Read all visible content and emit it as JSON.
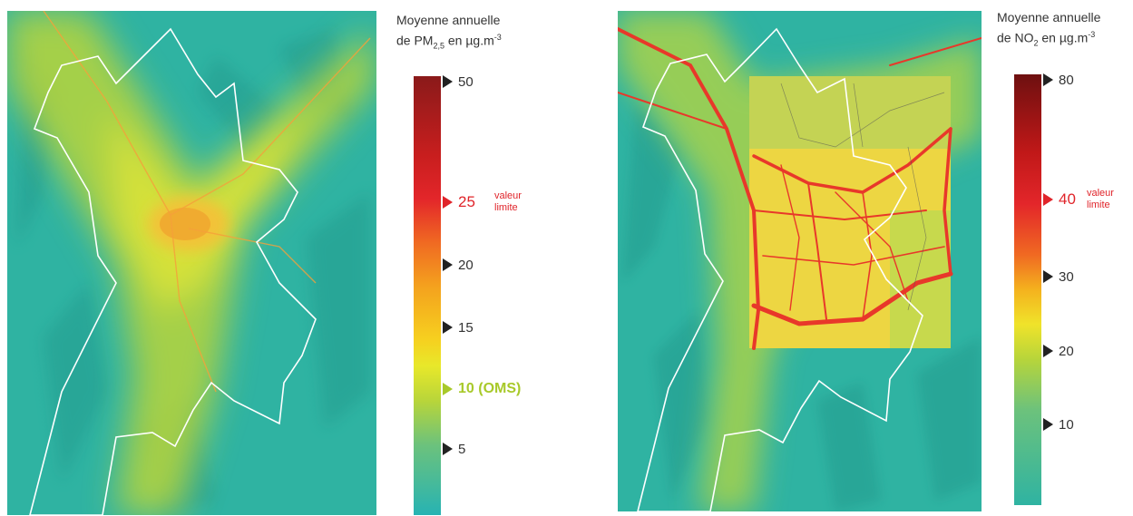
{
  "pm25_map": {
    "legend": {
      "title_line1": "Moyenne annuelle",
      "title_line2_prefix": "de PM",
      "title_line2_sub": "2,5",
      "title_line2_suffix": " en µg.m",
      "title_line2_sup": "-3",
      "limit_note": "valeur\nlimite",
      "ticks": [
        {
          "label": "50",
          "value": 50
        },
        {
          "label": "25",
          "value": 25,
          "highlight": "limit"
        },
        {
          "label": "20",
          "value": 20
        },
        {
          "label": "15",
          "value": 15
        },
        {
          "label": "10 (OMS)",
          "value": 10,
          "highlight": "who"
        },
        {
          "label": "5",
          "value": 5
        }
      ],
      "colors": {
        "limit": "#e0242a",
        "who": "#a8c92a"
      }
    }
  },
  "no2_map": {
    "legend": {
      "title_line1": "Moyenne annuelle",
      "title_line2_prefix": "de NO",
      "title_line2_sub": "2",
      "title_line2_suffix": " en µg.m",
      "title_line2_sup": "-3",
      "limit_note": "valeur\nlimite",
      "ticks": [
        {
          "label": "80",
          "value": 80
        },
        {
          "label": "40",
          "value": 40,
          "highlight": "limit"
        },
        {
          "label": "30",
          "value": 30
        },
        {
          "label": "20",
          "value": 20
        },
        {
          "label": "10",
          "value": 10
        }
      ],
      "colors": {
        "limit": "#e0242a"
      }
    }
  }
}
